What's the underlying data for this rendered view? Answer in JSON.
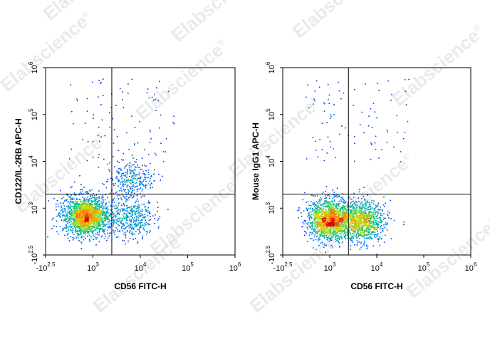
{
  "watermark": {
    "text": "Elabscience",
    "mark": "®"
  },
  "chart_data": [
    {
      "type": "scatter",
      "style": "flow-cytometry density dot plot (blue to green to yellow to red)",
      "xlabel": "CD56 FITC-H",
      "ylabel": "CD122/IL-2RB APC-H",
      "x_scale": "biexponential",
      "y_scale": "biexponential",
      "xlim": [
        -316,
        1000000
      ],
      "ylim": [
        -316,
        1000000
      ],
      "x_ticks": [
        {
          "base": "-10",
          "exp": "2.5",
          "value": -316
        },
        {
          "base": "10",
          "exp": "3",
          "value": 1000
        },
        {
          "base": "10",
          "exp": "4",
          "value": 10000
        },
        {
          "base": "10",
          "exp": "5",
          "value": 100000
        },
        {
          "base": "10",
          "exp": "6",
          "value": 1000000
        }
      ],
      "y_ticks": [
        {
          "base": "-10",
          "exp": "2.5",
          "value": -316
        },
        {
          "base": "10",
          "exp": "3",
          "value": 1000
        },
        {
          "base": "10",
          "exp": "4",
          "value": 10000
        },
        {
          "base": "10",
          "exp": "5",
          "value": 100000
        },
        {
          "base": "10",
          "exp": "6",
          "value": 1000000
        }
      ],
      "gate_x": 2500,
      "gate_y": 2000,
      "populations": [
        {
          "x": 800,
          "y": 800,
          "weight": 0.72
        },
        {
          "x": 6000,
          "y": 4000,
          "weight": 0.12
        },
        {
          "x": 6000,
          "y": 700,
          "weight": 0.16
        }
      ]
    },
    {
      "type": "scatter",
      "style": "flow-cytometry density dot plot (blue to green to yellow to red)",
      "xlabel": "CD56 FITC-H",
      "ylabel": "Mouse IgG1 APC-H",
      "x_scale": "biexponential",
      "y_scale": "biexponential",
      "xlim": [
        -316,
        1000000
      ],
      "ylim": [
        -316,
        1000000
      ],
      "x_ticks": [
        {
          "base": "-10",
          "exp": "2.5",
          "value": -316
        },
        {
          "base": "10",
          "exp": "3",
          "value": 1000
        },
        {
          "base": "10",
          "exp": "4",
          "value": 10000
        },
        {
          "base": "10",
          "exp": "5",
          "value": 100000
        },
        {
          "base": "10",
          "exp": "6",
          "value": 1000000
        }
      ],
      "y_ticks": [
        {
          "base": "-10",
          "exp": "2.5",
          "value": -316
        },
        {
          "base": "10",
          "exp": "3",
          "value": 1000
        },
        {
          "base": "10",
          "exp": "4",
          "value": 10000
        },
        {
          "base": "10",
          "exp": "5",
          "value": 100000
        },
        {
          "base": "10",
          "exp": "6",
          "value": 1000000
        }
      ],
      "gate_x": 2500,
      "gate_y": 2000,
      "populations": [
        {
          "x": 1000,
          "y": 700,
          "weight": 0.62
        },
        {
          "x": 5000,
          "y": 650,
          "weight": 0.38
        }
      ]
    }
  ]
}
